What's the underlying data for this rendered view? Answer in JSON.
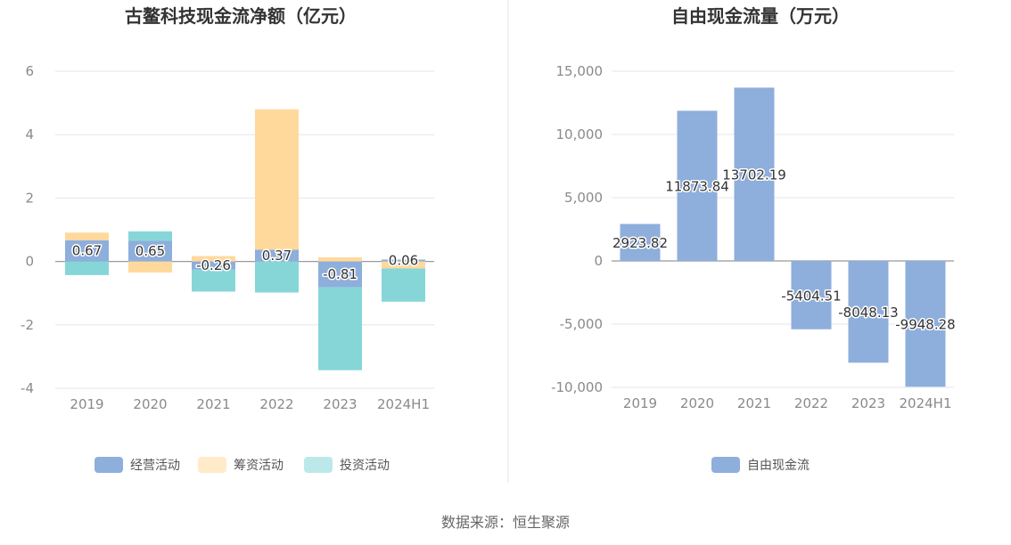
{
  "chart_data": [
    {
      "type": "bar",
      "stacked": true,
      "title": "古鳌科技现金流净额（亿元）",
      "xlabel": "",
      "ylabel": "",
      "categories": [
        "2019",
        "2020",
        "2021",
        "2022",
        "2023",
        "2024H1"
      ],
      "ylim": [
        -4,
        6
      ],
      "yticks": [
        -4,
        -2,
        0,
        2,
        4,
        6
      ],
      "grid": true,
      "legend_position": "bottom",
      "series": [
        {
          "name": "经营活动",
          "color": "#8eaedc",
          "values": [
            0.67,
            0.65,
            -0.26,
            0.37,
            -0.81,
            0.06
          ],
          "labels": [
            "0.67",
            "0.65",
            "-0.26",
            "0.37",
            "-0.81",
            "0.06"
          ]
        },
        {
          "name": "筹资活动",
          "color": "#ffd99c",
          "values": [
            0.24,
            -0.35,
            0.17,
            4.43,
            0.13,
            -0.22
          ]
        },
        {
          "name": "投资活动",
          "color": "#86d6d8",
          "values": [
            -0.43,
            0.3,
            -0.69,
            -0.98,
            -2.62,
            -1.05
          ]
        }
      ]
    },
    {
      "type": "bar",
      "title": "自由现金流量（万元）",
      "xlabel": "",
      "ylabel": "",
      "categories": [
        "2019",
        "2020",
        "2021",
        "2022",
        "2023",
        "2024H1"
      ],
      "ylim": [
        -10000,
        15000
      ],
      "yticks": [
        -10000,
        -5000,
        0,
        5000,
        10000,
        15000
      ],
      "ytick_labels": [
        "-10,000",
        "-5,000",
        "0",
        "5,000",
        "10,000",
        "15,000"
      ],
      "grid": true,
      "legend_position": "bottom",
      "series": [
        {
          "name": "自由现金流",
          "color": "#8eaedc",
          "values": [
            2923.82,
            11873.84,
            13702.19,
            -5404.51,
            -8048.13,
            -9948.28
          ],
          "labels": [
            "2923.82",
            "11873.84",
            "13702.19",
            "-5404.51",
            "-8048.13",
            "-9948.28"
          ]
        }
      ]
    }
  ],
  "source_text": "数据来源：恒生聚源"
}
